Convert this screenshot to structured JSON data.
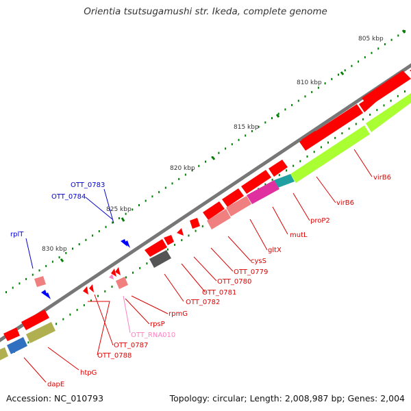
{
  "title": "Orientia tsutsugamushi str. Ikeda, complete genome",
  "footer": {
    "accession": "Accession: NC_010793",
    "stats": "Topology: circular; Length: 2,008,987 bp; Genes: 2,004"
  },
  "colors": {
    "backbone": "#888888",
    "forward_gene": "#ff0000",
    "reverse_gene": "#ff0000",
    "pseudo_gene": "#f08080",
    "ncRNA_label": "#ff80c0",
    "cds_purple": "#e030a0",
    "cds_teal": "#20a0a0",
    "cds_gray": "#555555",
    "cds_blue": "#3070c0",
    "cds_olive": "#b0b050",
    "cds_green": "#aaff33",
    "label_red": "#dd0000",
    "label_blue": "#0000cc",
    "tick_green": "#008000",
    "repeat_blue": "#0000ff"
  },
  "scale_ticks": [
    {
      "label": "805 kbp"
    },
    {
      "label": "810 kbp"
    },
    {
      "label": "815 kbp"
    },
    {
      "label": "820 kbp"
    },
    {
      "label": "825 kbp"
    },
    {
      "label": "830 kbp"
    }
  ],
  "gene_labels": [
    {
      "name": "virB6a",
      "text": "virB6",
      "color": "red"
    },
    {
      "name": "virB6b",
      "text": "virB6",
      "color": "red"
    },
    {
      "name": "proP2",
      "text": "proP2",
      "color": "red"
    },
    {
      "name": "mutL",
      "text": "mutL",
      "color": "red"
    },
    {
      "name": "gltX",
      "text": "gltX",
      "color": "red"
    },
    {
      "name": "cysS",
      "text": "cysS",
      "color": "red"
    },
    {
      "name": "OTT_0779",
      "text": "OTT_0779",
      "color": "red"
    },
    {
      "name": "OTT_0780",
      "text": "OTT_0780",
      "color": "red"
    },
    {
      "name": "OTT_0781",
      "text": "OTT_0781",
      "color": "red"
    },
    {
      "name": "OTT_0782",
      "text": "OTT_0782",
      "color": "red"
    },
    {
      "name": "rpmG",
      "text": "rpmG",
      "color": "red"
    },
    {
      "name": "rpsP",
      "text": "rpsP",
      "color": "red"
    },
    {
      "name": "OTT_RNA010",
      "text": "OTT_RNA010",
      "color": "pink"
    },
    {
      "name": "OTT_0787",
      "text": "OTT_0787",
      "color": "red"
    },
    {
      "name": "OTT_0788",
      "text": "OTT_0788",
      "color": "red"
    },
    {
      "name": "htpG",
      "text": "htpG",
      "color": "red"
    },
    {
      "name": "dapE",
      "text": "dapE",
      "color": "red"
    },
    {
      "name": "OTT_0783",
      "text": "OTT_0783",
      "color": "blue"
    },
    {
      "name": "OTT_0784",
      "text": "OTT_0784",
      "color": "blue"
    },
    {
      "name": "rplT",
      "text": "rplT",
      "color": "blue"
    }
  ]
}
